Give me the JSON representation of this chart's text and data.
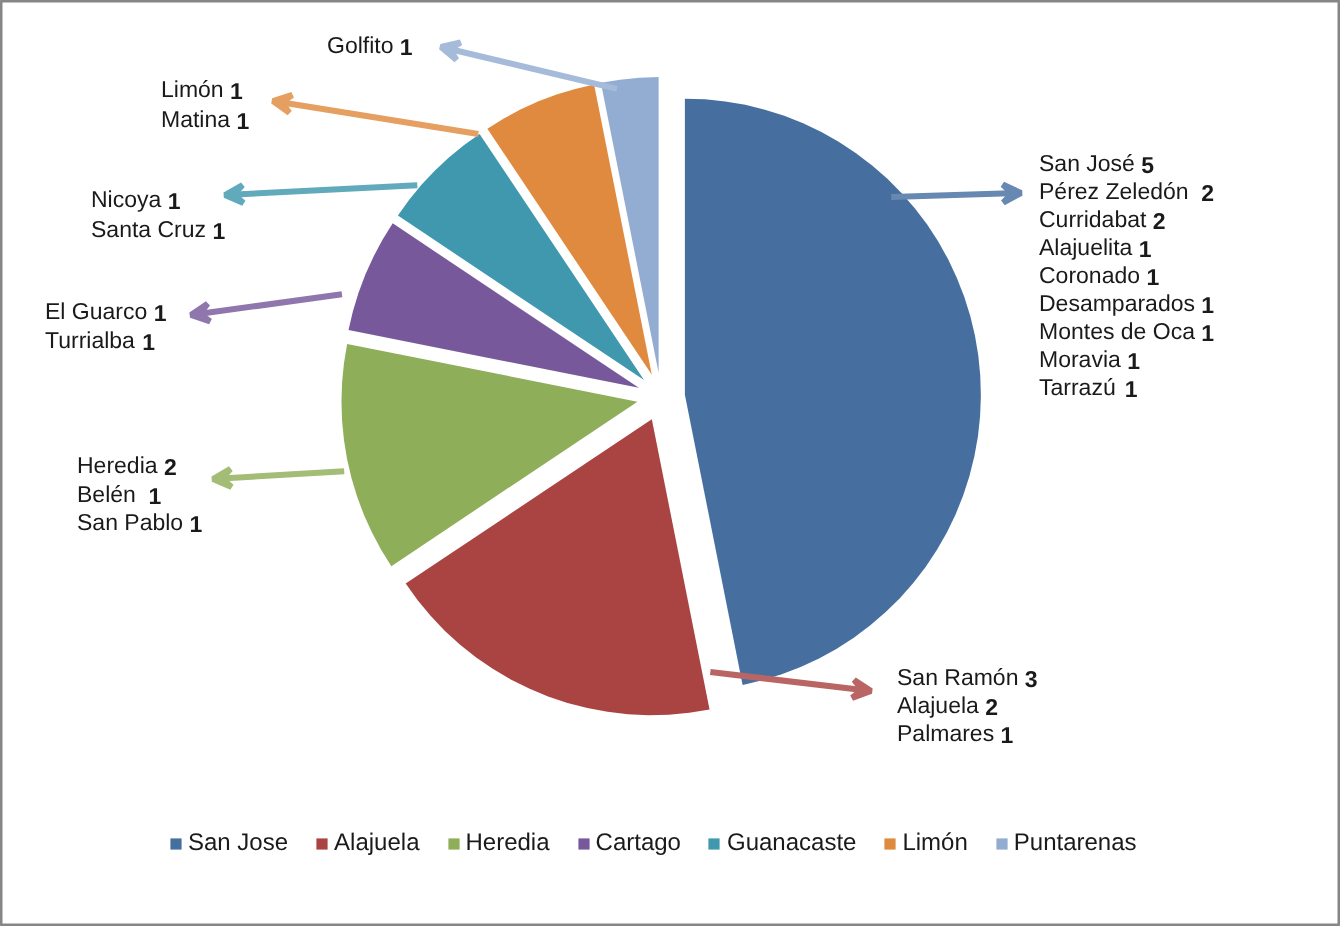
{
  "chart_data": {
    "type": "pie",
    "categories": [
      "San Jose",
      "Alajuela",
      "Heredia",
      "Cartago",
      "Guanacaste",
      "Limón",
      "Puntarenas"
    ],
    "values": [
      46.875,
      18.75,
      12.5,
      6.25,
      6.25,
      6.25,
      3.125
    ],
    "colors": [
      "#466fa0",
      "#a94442",
      "#8fae59",
      "#77599b",
      "#3f98ae",
      "#e08a3f",
      "#93acd1"
    ],
    "legend": "bottom",
    "annotations": [
      "San José 5\nPérez  Zeledón 2\nCurridabat 2\nAlajuelita 1\nCoronado 1\nDesamparados 1\nMontes de Oca 1\nMoravia 1\nTarrazú 1",
      "San Ramón 3\nAlajuela 2\nPalmares 1",
      "Heredia 2\nBelén  1\nSan Pablo 1",
      "El Guarco 1\nTurrialba 1",
      "Nicoya 1\nSanta Cruz 1",
      "Limón 1\nMatina 1",
      "Golfito 1"
    ]
  }
}
